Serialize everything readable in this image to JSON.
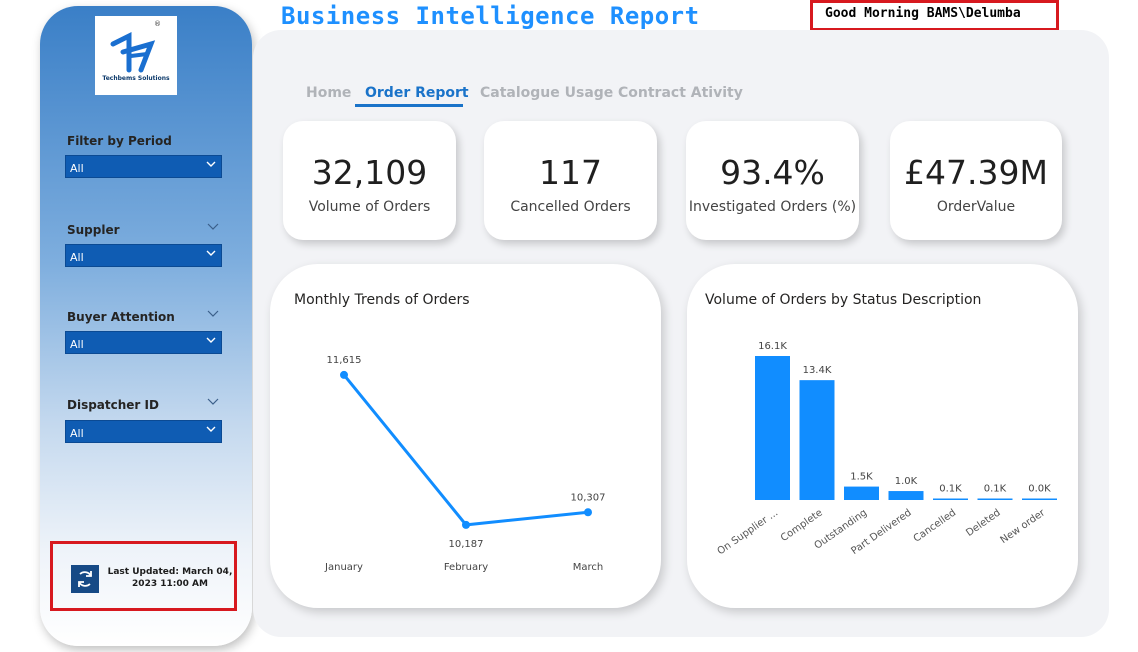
{
  "header": {
    "title": "Business Intelligence Report",
    "greeting": "Good Morning BAMS\\Delumba"
  },
  "logo": {
    "company": "Techbems Solutions",
    "reg_mark": "®"
  },
  "filters": [
    {
      "label": "Filter by Period",
      "value": "All"
    },
    {
      "label": "Suppler",
      "value": "All"
    },
    {
      "label": "Buyer Attention",
      "value": "All"
    },
    {
      "label": "Dispatcher ID",
      "value": "All"
    }
  ],
  "last_updated": {
    "line1": "Last Updated: March 04,",
    "line2": "2023 11:00 AM"
  },
  "tabs": [
    {
      "label": "Home",
      "active": false
    },
    {
      "label": "Order Report",
      "active": true
    },
    {
      "label": "Catalogue Usage",
      "active": false
    },
    {
      "label": "Contract Ativity",
      "active": false
    }
  ],
  "kpis": [
    {
      "value": "32,109",
      "label": "Volume of Orders"
    },
    {
      "value": "117",
      "label": "Cancelled Orders"
    },
    {
      "value": "93.4%",
      "label": "Investigated Orders (%)"
    },
    {
      "value": "£47.39M",
      "label": "OrderValue"
    }
  ],
  "colors": {
    "accent": "#1e90ff",
    "bar": "#118dff",
    "highlight_border": "#d7191f",
    "filter_bg": "#0f5cb3"
  },
  "icons": {
    "refresh": "refresh-icon",
    "dropdown": "chevron-down-icon"
  },
  "chart_data": [
    {
      "type": "line",
      "title": "Monthly Trends of Orders",
      "categories": [
        "January",
        "February",
        "March"
      ],
      "values": [
        11615,
        10187,
        10307
      ],
      "data_labels": [
        "11,615",
        "10,187",
        "10,307"
      ],
      "ylim": [
        10100,
        11700
      ],
      "grid": false
    },
    {
      "type": "bar",
      "title": "Volume of Orders by Status Description",
      "categories": [
        "On Supplier ...",
        "Complete",
        "Outstanding",
        "Part Delivered",
        "Cancelled",
        "Deleted",
        "New order"
      ],
      "values": [
        16100,
        13400,
        1500,
        1000,
        100,
        100,
        0
      ],
      "data_labels": [
        "16.1K",
        "13.4K",
        "1.5K",
        "1.0K",
        "0.1K",
        "0.1K",
        "0.0K"
      ],
      "ylim": [
        0,
        16100
      ],
      "grid": false
    }
  ]
}
